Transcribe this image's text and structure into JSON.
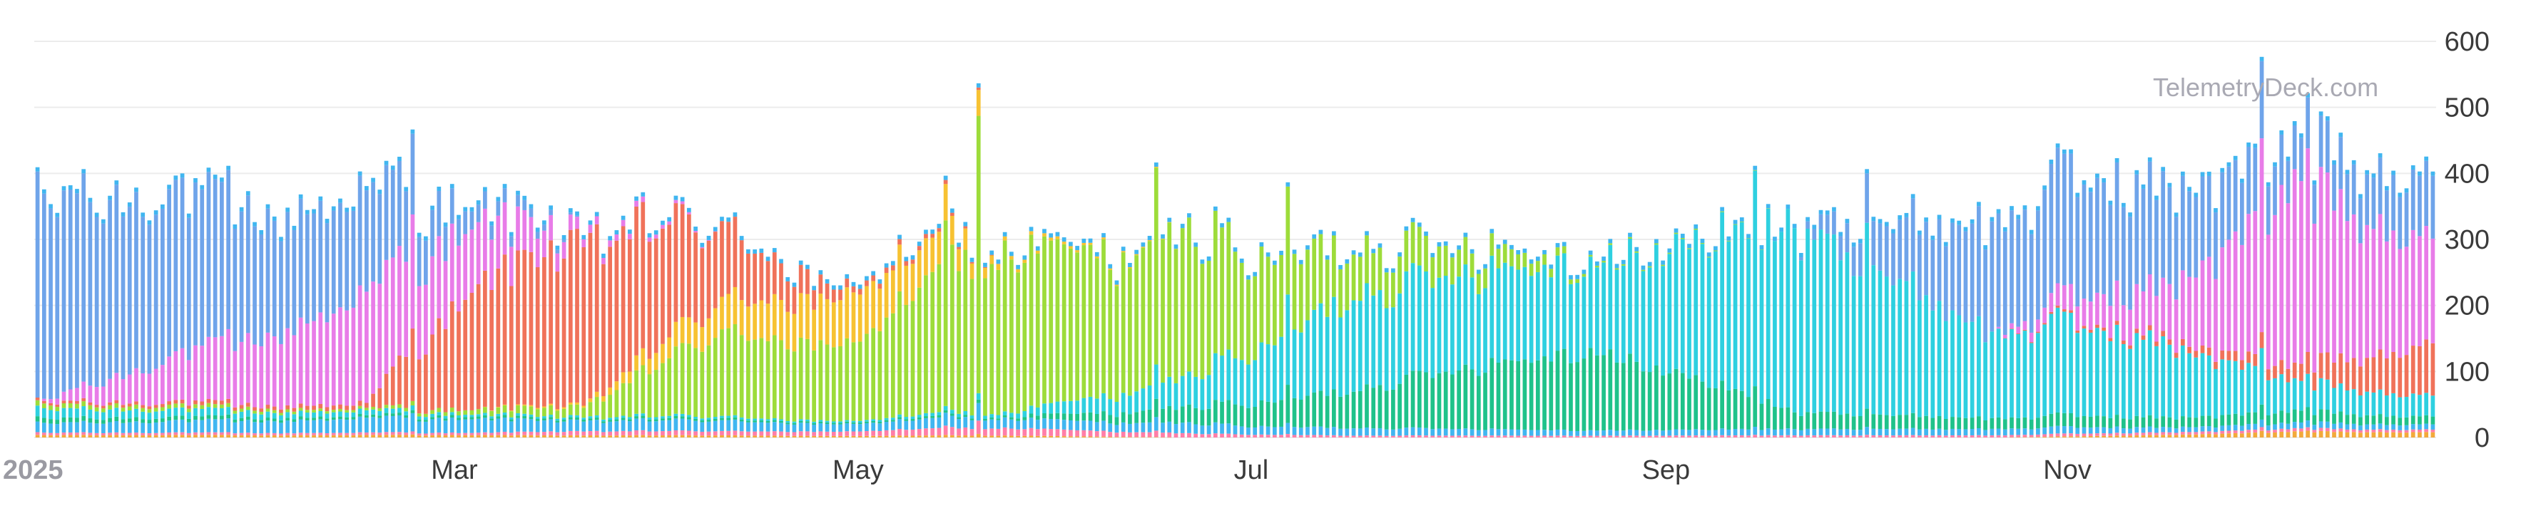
{
  "watermark": "TelemetryDeck.com",
  "chart_data": {
    "type": "bar",
    "stacked": true,
    "title": "",
    "xlabel": "",
    "ylabel": "",
    "x_start": "2025-01-01",
    "x_end": "2025-12-31",
    "ylim": [
      0,
      600
    ],
    "y_ticks": [
      0,
      100,
      200,
      300,
      400,
      500,
      600
    ],
    "y_axis_position": "right",
    "grid": true,
    "legend": "none",
    "x_tick_labels": [
      {
        "date": "2025-01-01",
        "label": "2025",
        "year": true
      },
      {
        "date": "2025-03-01",
        "label": "Mar"
      },
      {
        "date": "2025-05-01",
        "label": "May"
      },
      {
        "date": "2025-07-01",
        "label": "Jul"
      },
      {
        "date": "2025-09-01",
        "label": "Sep"
      },
      {
        "date": "2025-11-01",
        "label": "Nov"
      }
    ],
    "series_colors": [
      "#f2a93b",
      "#ff7ea8",
      "#40b6f0",
      "#1fc28a",
      "#2ed0e0",
      "#9ddc3a",
      "#f7c232",
      "#f0725a",
      "#e87ce8",
      "#6fa4ea"
    ],
    "total_profile": [
      [
        "2025-01-01",
        370
      ],
      [
        "2025-01-15",
        360
      ],
      [
        "2025-01-24",
        385
      ],
      [
        "2025-02-05",
        330
      ],
      [
        "2025-02-15",
        360
      ],
      [
        "2025-02-25",
        400
      ],
      [
        "2025-03-01",
        350
      ],
      [
        "2025-03-10",
        345
      ],
      [
        "2025-03-15",
        360
      ],
      [
        "2025-03-25",
        300
      ],
      [
        "2025-04-05",
        340
      ],
      [
        "2025-04-15",
        320
      ],
      [
        "2025-04-25",
        270
      ],
      [
        "2025-05-01",
        220
      ],
      [
        "2025-05-10",
        260
      ],
      [
        "2025-05-20",
        330
      ],
      [
        "2025-05-25",
        275
      ],
      [
        "2025-06-05",
        300
      ],
      [
        "2025-06-15",
        270
      ],
      [
        "2025-06-20",
        300
      ],
      [
        "2025-06-30",
        320
      ],
      [
        "2025-07-05",
        260
      ],
      [
        "2025-07-15",
        290
      ],
      [
        "2025-08-01",
        300
      ],
      [
        "2025-08-15",
        290
      ],
      [
        "2025-08-25",
        270
      ],
      [
        "2025-09-05",
        285
      ],
      [
        "2025-09-15",
        320
      ],
      [
        "2025-09-25",
        320
      ],
      [
        "2025-10-10",
        330
      ],
      [
        "2025-10-28",
        330
      ],
      [
        "2025-11-05",
        410
      ],
      [
        "2025-11-15",
        380
      ],
      [
        "2025-11-25",
        390
      ],
      [
        "2025-12-05",
        420
      ],
      [
        "2025-12-12",
        450
      ],
      [
        "2025-12-20",
        430
      ],
      [
        "2025-12-31",
        390
      ]
    ],
    "spikes": [
      [
        "2025-01-07",
        370
      ],
      [
        "2025-01-30",
        405
      ],
      [
        "2025-02-27",
        460
      ],
      [
        "2025-05-19",
        390
      ],
      [
        "2025-05-24",
        530
      ],
      [
        "2025-06-20",
        410
      ],
      [
        "2025-07-10",
        380
      ],
      [
        "2025-09-19",
        405
      ],
      [
        "2025-10-06",
        400
      ],
      [
        "2025-12-01",
        420
      ],
      [
        "2025-12-05",
        570
      ],
      [
        "2025-12-12",
        515
      ],
      [
        "2025-12-15",
        480
      ]
    ],
    "regime_shares": [
      {
        "date": "2025-01-01",
        "shares": [
          0.01,
          0.01,
          0.04,
          0.02,
          0.04,
          0.02,
          0.0,
          0.01,
          0.0,
          0.85
        ]
      },
      {
        "date": "2025-02-20",
        "shares": [
          0.01,
          0.01,
          0.06,
          0.01,
          0.02,
          0.01,
          0.0,
          0.02,
          0.45,
          0.41
        ]
      },
      {
        "date": "2025-03-08",
        "shares": [
          0.01,
          0.01,
          0.06,
          0.01,
          0.01,
          0.02,
          0.0,
          0.52,
          0.28,
          0.08
        ]
      },
      {
        "date": "2025-03-25",
        "shares": [
          0.01,
          0.02,
          0.05,
          0.01,
          0.01,
          0.05,
          0.01,
          0.8,
          0.04,
          0.0
        ]
      },
      {
        "date": "2025-04-15",
        "shares": [
          0.01,
          0.02,
          0.05,
          0.01,
          0.01,
          0.4,
          0.15,
          0.35,
          0.0,
          0.0
        ]
      },
      {
        "date": "2025-05-05",
        "shares": [
          0.01,
          0.03,
          0.05,
          0.01,
          0.01,
          0.52,
          0.33,
          0.04,
          0.0,
          0.0
        ]
      },
      {
        "date": "2025-05-28",
        "shares": [
          0.01,
          0.04,
          0.05,
          0.01,
          0.02,
          0.85,
          0.02,
          0.0,
          0.0,
          0.0
        ]
      },
      {
        "date": "2025-06-25",
        "shares": [
          0.0,
          0.02,
          0.05,
          0.08,
          0.15,
          0.7,
          0.0,
          0.0,
          0.0,
          0.0
        ]
      },
      {
        "date": "2025-07-20",
        "shares": [
          0.0,
          0.01,
          0.04,
          0.2,
          0.5,
          0.25,
          0.0,
          0.0,
          0.0,
          0.0
        ]
      },
      {
        "date": "2025-08-25",
        "shares": [
          0.0,
          0.01,
          0.03,
          0.45,
          0.5,
          0.01,
          0.0,
          0.0,
          0.0,
          0.0
        ]
      },
      {
        "date": "2025-09-25",
        "shares": [
          0.0,
          0.01,
          0.03,
          0.08,
          0.88,
          0.0,
          0.0,
          0.0,
          0.0,
          0.0
        ]
      },
      {
        "date": "2025-10-25",
        "shares": [
          0.0,
          0.01,
          0.03,
          0.05,
          0.4,
          0.0,
          0.0,
          0.0,
          0.0,
          0.51
        ]
      },
      {
        "date": "2025-11-20",
        "shares": [
          0.01,
          0.01,
          0.02,
          0.04,
          0.3,
          0.0,
          0.0,
          0.02,
          0.2,
          0.4
        ]
      },
      {
        "date": "2025-12-10",
        "shares": [
          0.02,
          0.01,
          0.02,
          0.04,
          0.1,
          0.0,
          0.0,
          0.05,
          0.62,
          0.14
        ]
      },
      {
        "date": "2025-12-31",
        "shares": [
          0.02,
          0.01,
          0.02,
          0.03,
          0.08,
          0.0,
          0.0,
          0.2,
          0.4,
          0.24
        ]
      }
    ]
  }
}
